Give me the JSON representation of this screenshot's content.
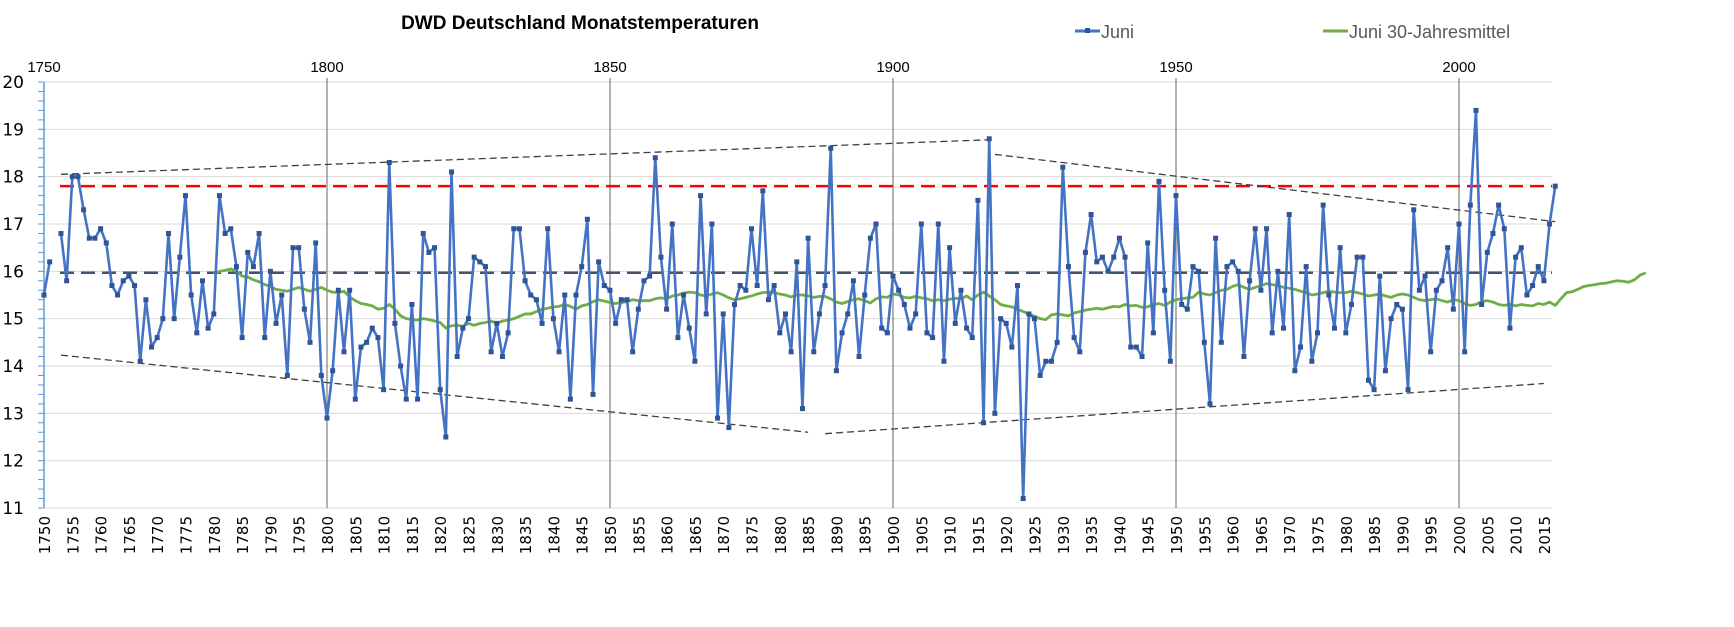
{
  "chart_data": {
    "type": "line",
    "title": "DWD Deutschland Monatstemperaturen",
    "xlabel": "",
    "ylabel": "",
    "xlim": [
      1750,
      2017
    ],
    "ylim": [
      11,
      20
    ],
    "yticks": [
      11,
      12,
      13,
      14,
      15,
      16,
      17,
      18,
      19,
      20
    ],
    "xticks_bottom": [
      1750,
      1755,
      1760,
      1765,
      1770,
      1775,
      1780,
      1785,
      1790,
      1795,
      1800,
      1805,
      1810,
      1815,
      1820,
      1825,
      1830,
      1835,
      1840,
      1845,
      1850,
      1855,
      1860,
      1865,
      1870,
      1875,
      1880,
      1885,
      1890,
      1895,
      1900,
      1905,
      1910,
      1915,
      1920,
      1925,
      1930,
      1935,
      1940,
      1945,
      1950,
      1955,
      1960,
      1965,
      1970,
      1975,
      1980,
      1985,
      1990,
      1995,
      2000,
      2005,
      2010,
      2015
    ],
    "xticks_top": [
      1750,
      1800,
      1850,
      1900,
      1950,
      2000
    ],
    "grid": true,
    "legend": {
      "placement": "top-right",
      "entries": [
        "Juni",
        "Juni 30-Jahresmittel"
      ]
    },
    "colors": {
      "juni": "#4472C4",
      "marker": "#2F5597",
      "mean30": "#70AD47",
      "ref_high": "#FF0000",
      "ref_mean": "#44546A",
      "trend": "#404040",
      "decade_lines": "#7F7F7F"
    },
    "series": [
      {
        "name": "Juni",
        "start_year": 1750,
        "values": [
          15.5,
          16.2,
          null,
          16.8,
          15.8,
          18.0,
          18.0,
          17.3,
          16.7,
          16.7,
          16.9,
          16.6,
          15.7,
          15.5,
          15.8,
          15.9,
          15.7,
          14.1,
          15.4,
          14.4,
          14.6,
          15.0,
          16.8,
          15.0,
          16.3,
          17.6,
          15.5,
          14.7,
          15.8,
          14.8,
          15.1,
          17.6,
          16.8,
          16.9,
          16.1,
          14.6,
          16.4,
          16.1,
          16.8,
          14.6,
          16.0,
          14.9,
          15.5,
          13.8,
          16.5,
          16.5,
          15.2,
          14.5,
          16.6,
          13.8,
          12.9,
          13.9,
          15.6,
          14.3,
          15.6,
          13.3,
          14.4,
          14.5,
          14.8,
          14.6,
          13.5,
          18.3,
          14.9,
          14.0,
          13.3,
          15.3,
          13.3,
          16.8,
          16.4,
          16.5,
          13.5,
          12.5,
          18.1,
          14.2,
          14.8,
          15.0,
          16.3,
          16.2,
          16.1,
          14.3,
          14.9,
          14.2,
          14.7,
          16.9,
          16.9,
          15.8,
          15.5,
          15.4,
          14.9,
          16.9,
          15.0,
          14.3,
          15.5,
          13.3,
          15.5,
          16.1,
          17.1,
          13.4,
          16.2,
          15.7,
          15.6,
          14.9,
          15.4,
          15.4,
          14.3,
          15.2,
          15.8,
          15.9,
          18.4,
          16.3,
          15.2,
          17.0,
          14.6,
          15.5,
          14.8,
          14.1,
          17.6,
          15.1,
          17.0,
          12.9,
          15.1,
          12.7,
          15.3,
          15.7,
          15.6,
          16.9,
          15.7,
          17.7,
          15.4,
          15.7,
          14.7,
          15.1,
          14.3,
          16.2,
          13.1,
          16.7,
          14.3,
          15.1,
          15.7,
          18.6,
          13.9,
          14.7,
          15.1,
          15.8,
          14.2,
          15.5,
          16.7,
          17.0,
          14.8,
          14.7,
          15.9,
          15.6,
          15.3,
          14.8,
          15.1,
          17.0,
          14.7,
          14.6,
          17.0,
          14.1,
          16.5,
          14.9,
          15.6,
          14.8,
          14.6,
          17.5,
          12.8,
          18.8,
          13.0,
          15.0,
          14.9,
          14.4,
          15.7,
          11.2,
          15.1,
          15.0,
          13.8,
          14.1,
          14.1,
          14.5,
          18.2,
          16.1,
          14.6,
          14.3,
          16.4,
          17.2,
          16.2,
          16.3,
          16.0,
          16.3,
          16.7,
          16.3,
          14.4,
          14.4,
          14.2,
          16.6,
          14.7,
          17.9,
          15.6,
          14.1,
          17.6,
          15.3,
          15.2,
          16.1,
          16.0,
          14.5,
          13.2,
          16.7,
          14.5,
          16.1,
          16.2,
          16.0,
          14.2,
          15.8,
          16.9,
          15.6,
          16.9,
          14.7,
          16.0,
          14.8,
          17.2,
          13.9,
          14.4,
          16.1,
          14.1,
          14.7,
          17.4,
          15.5,
          14.8,
          16.5,
          14.7,
          15.3,
          16.3,
          16.3,
          13.7,
          13.5,
          15.9,
          13.9,
          15.0,
          15.3,
          15.2,
          13.5,
          17.3,
          15.6,
          15.9,
          14.3,
          15.6,
          15.8,
          16.5,
          15.2,
          17.0,
          14.3,
          17.4,
          19.4,
          15.3,
          16.4,
          16.8,
          17.4,
          16.9,
          14.8,
          16.3,
          16.5,
          15.5,
          15.7,
          16.1,
          15.8,
          17.0,
          17.8
        ]
      },
      {
        "name": "Juni 30-Jahresmittel",
        "start_year": 1780,
        "values": [
          15.95,
          16.0,
          16.02,
          16.05,
          16.0,
          15.9,
          15.88,
          15.82,
          15.78,
          15.72,
          15.68,
          15.62,
          15.6,
          15.58,
          15.62,
          15.66,
          15.62,
          15.58,
          15.62,
          15.66,
          15.6,
          15.56,
          15.55,
          15.58,
          15.46,
          15.38,
          15.32,
          15.3,
          15.27,
          15.2,
          15.22,
          15.3,
          15.2,
          15.06,
          15.0,
          14.98,
          14.97,
          15.0,
          14.98,
          14.95,
          14.92,
          14.8,
          14.85,
          14.86,
          14.84,
          14.9,
          14.86,
          14.9,
          14.92,
          14.95,
          14.9,
          14.95,
          14.97,
          15.0,
          15.05,
          15.1,
          15.1,
          15.15,
          15.2,
          15.22,
          15.25,
          15.26,
          15.3,
          15.26,
          15.2,
          15.27,
          15.3,
          15.36,
          15.4,
          15.37,
          15.34,
          15.32,
          15.34,
          15.36,
          15.4,
          15.38,
          15.38,
          15.38,
          15.42,
          15.44,
          15.42,
          15.48,
          15.5,
          15.54,
          15.56,
          15.55,
          15.5,
          15.48,
          15.52,
          15.55,
          15.5,
          15.44,
          15.4,
          15.42,
          15.45,
          15.48,
          15.52,
          15.55,
          15.56,
          15.55,
          15.52,
          15.5,
          15.46,
          15.5,
          15.5,
          15.48,
          15.45,
          15.47,
          15.47,
          15.42,
          15.35,
          15.32,
          15.36,
          15.4,
          15.42,
          15.38,
          15.33,
          15.42,
          15.46,
          15.45,
          15.52,
          15.5,
          15.45,
          15.44,
          15.47,
          15.44,
          15.42,
          15.38,
          15.4,
          15.38,
          15.41,
          15.43,
          15.42,
          15.48,
          15.4,
          15.5,
          15.56,
          15.48,
          15.4,
          15.3,
          15.27,
          15.25,
          15.2,
          15.15,
          15.1,
          15.05,
          15.0,
          14.98,
          15.08,
          15.1,
          15.08,
          15.06,
          15.12,
          15.15,
          15.18,
          15.2,
          15.22,
          15.2,
          15.23,
          15.26,
          15.25,
          15.3,
          15.27,
          15.28,
          15.24,
          15.25,
          15.3,
          15.32,
          15.28,
          15.35,
          15.4,
          15.42,
          15.44,
          15.45,
          15.56,
          15.52,
          15.5,
          15.55,
          15.6,
          15.62,
          15.68,
          15.72,
          15.66,
          15.62,
          15.66,
          15.7,
          15.74,
          15.72,
          15.7,
          15.66,
          15.64,
          15.62,
          15.58,
          15.55,
          15.5,
          15.52,
          15.55,
          15.58,
          15.56,
          15.55,
          15.55,
          15.58,
          15.55,
          15.52,
          15.48,
          15.5,
          15.52,
          15.48,
          15.45,
          15.5,
          15.52,
          15.5,
          15.45,
          15.4,
          15.38,
          15.4,
          15.42,
          15.38,
          15.35,
          15.4,
          15.38,
          15.32,
          15.28,
          15.3,
          15.36,
          15.38,
          15.35,
          15.3,
          15.28,
          15.3,
          15.27,
          15.3,
          15.28,
          15.27,
          15.32,
          15.3,
          15.35,
          15.28,
          15.42,
          15.55,
          15.57,
          15.62,
          15.68,
          15.7,
          15.72,
          15.74,
          15.75,
          15.78,
          15.8,
          15.79,
          15.77,
          15.82,
          15.92,
          15.97
        ]
      }
    ],
    "reference_lines": [
      {
        "name": "hoch",
        "value": 17.8,
        "style": "dashed-red"
      },
      {
        "name": "mittel",
        "value": 15.97,
        "style": "dashed-slate"
      }
    ],
    "trend_lines": [
      {
        "name": "upper-1",
        "from": [
          1753,
          18.05
        ],
        "to": [
          1917,
          18.78
        ]
      },
      {
        "name": "upper-2",
        "from": [
          1918,
          18.47
        ],
        "to": [
          2017,
          17.05
        ]
      },
      {
        "name": "lower-1",
        "from": [
          1753,
          14.23
        ],
        "to": [
          1885,
          12.6
        ]
      },
      {
        "name": "lower-2",
        "from": [
          1888,
          12.57
        ],
        "to": [
          2015,
          13.63
        ]
      }
    ],
    "decade_lines": [
      1800,
      1850,
      1900,
      1950,
      2000
    ]
  }
}
